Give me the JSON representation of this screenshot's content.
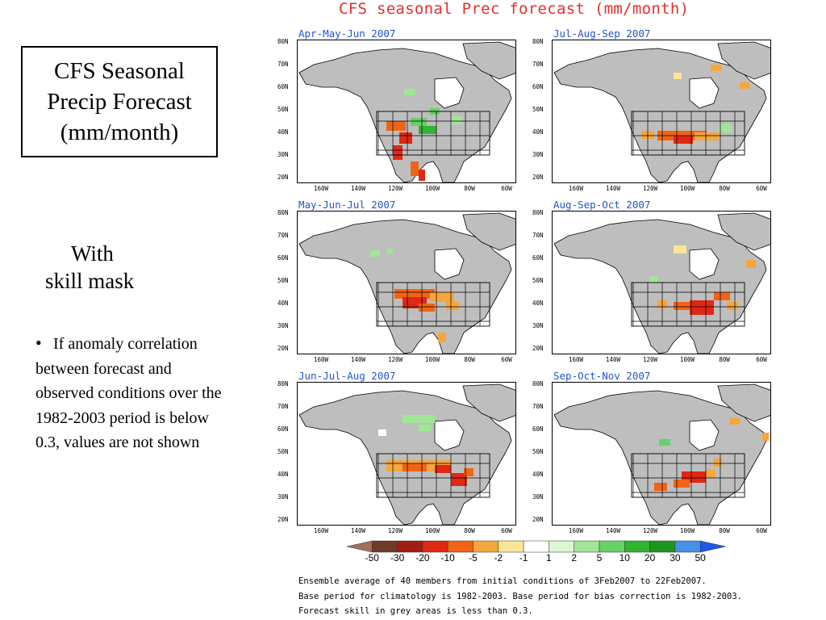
{
  "slide": {
    "title_lines": [
      "CFS Seasonal",
      "Precip Forecast",
      "(mm/month)"
    ],
    "subtitle_lines": [
      "With",
      "skill mask"
    ],
    "note_bullet": "•",
    "note_text": "If anomaly correlation  between forecast and observed conditions over the 1982-2003 period is below 0.3, values are not shown"
  },
  "figure": {
    "title": "CFS seasonal Prec forecast (mm/month)",
    "panels": [
      {
        "title": "Apr-May-Jun 2007"
      },
      {
        "title": "Jul-Aug-Sep 2007"
      },
      {
        "title": "May-Jun-Jul 2007"
      },
      {
        "title": "Aug-Sep-Oct 2007"
      },
      {
        "title": "Jun-Jul-Aug 2007"
      },
      {
        "title": "Sep-Oct-Nov 2007"
      }
    ],
    "lat_labels": [
      "80N",
      "70N",
      "60N",
      "50N",
      "40N",
      "30N",
      "20N"
    ],
    "lon_labels": [
      "160W",
      "140W",
      "120W",
      "100W",
      "80W",
      "60W"
    ],
    "colorbar": {
      "labels": [
        "-50",
        "-30",
        "-20",
        "-10",
        "-5",
        "-2",
        "-1",
        "1",
        "2",
        "5",
        "10",
        "20",
        "30",
        "50"
      ],
      "colors": [
        "#a0705a",
        "#6e3a2a",
        "#a01e14",
        "#e02814",
        "#f06414",
        "#f5a63c",
        "#fae696",
        "#ffffff",
        "#dcf5d2",
        "#a0e696",
        "#64d264",
        "#32b432",
        "#1e961e",
        "#4690e6",
        "#1e5ae6"
      ]
    },
    "footnotes": [
      "Ensemble average of 40 members from initial conditions of 3Feb2007 to 22Feb2007.",
      "Base period for climatology is 1982-2003. Base period for bias correction is 1982-2003.",
      "Forecast skill in grey areas is less than 0.3."
    ],
    "mask_color": "#bebebe",
    "title_color": "#e62e2e",
    "panel_title_color": "#2255cc"
  }
}
